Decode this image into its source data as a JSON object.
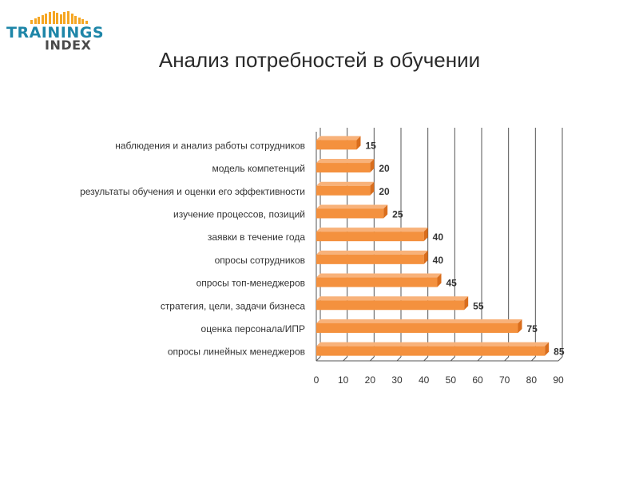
{
  "logo": {
    "line1": "TRAININGS",
    "line2": "INDEX"
  },
  "title": "Анализ потребностей в обучении",
  "colors": {
    "bar": "#f4913e",
    "bar_dark": "#d96d1c",
    "grid": "#555555",
    "logo_blue": "#1e86a8",
    "logo_orange": "#f5a623"
  },
  "chart_data": {
    "type": "bar",
    "orientation": "horizontal",
    "categories": [
      "наблюдения и анализ работы сотрудников",
      "модель компетенций",
      "результаты обучения и оценки его эффективности",
      "изучение процессов, позиций",
      "заявки в течение года",
      "опросы сотрудников",
      "опросы топ-менеджеров",
      "стратегия, цели, задачи бизнеса",
      "оценка персонала/ИПР",
      "опросы линейных менеджеров"
    ],
    "values": [
      15,
      20,
      20,
      25,
      40,
      40,
      45,
      55,
      75,
      85
    ],
    "xlim": [
      0,
      90
    ],
    "xticks": [
      0,
      10,
      20,
      30,
      40,
      50,
      60,
      70,
      80,
      90
    ],
    "grid": true
  }
}
